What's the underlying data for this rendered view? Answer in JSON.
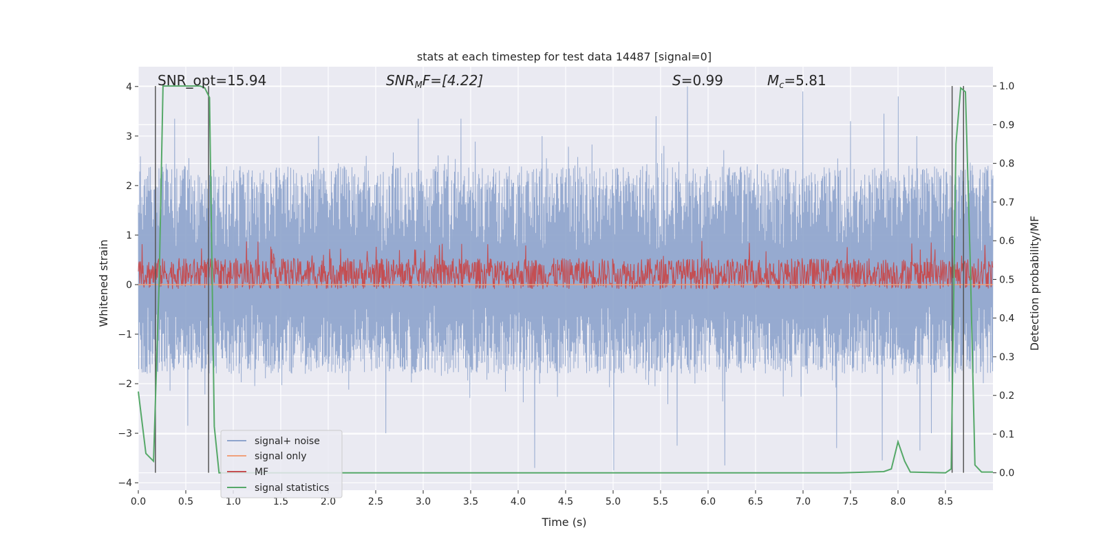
{
  "chart_data": {
    "type": "line",
    "title": "stats at each timestep for test data 14487 [signal=0]",
    "xlabel": "Time (s)",
    "ylabel": "Whitened strain",
    "y2label": "Detection probability/MF",
    "xlim": [
      0.0,
      9.0
    ],
    "ylim": [
      -4.15,
      4.4
    ],
    "y2lim": [
      -0.045,
      1.05
    ],
    "x_ticks": [
      "0.0",
      "0.5",
      "1.0",
      "1.5",
      "2.0",
      "2.5",
      "3.0",
      "3.5",
      "4.0",
      "4.5",
      "5.0",
      "5.5",
      "6.0",
      "6.5",
      "7.0",
      "7.5",
      "8.0",
      "8.5"
    ],
    "y_ticks": [
      "4",
      "3",
      "2",
      "1",
      "0",
      "−1",
      "−2",
      "−3",
      "−4"
    ],
    "y2_ticks": [
      "1.0",
      "0.9",
      "0.8",
      "0.7",
      "0.6",
      "0.5",
      "0.4",
      "0.3",
      "0.2",
      "0.1",
      "0.0"
    ],
    "grid": true,
    "annotations": {
      "snr_opt": "SNR_opt=15.94",
      "snr_mf_label": "SNR",
      "snr_mf_sub": "M",
      "snr_mf_rest": "F=[4.22]",
      "s_label": "S",
      "s_value": "=0.99",
      "mc_label": "M",
      "mc_sub": "c",
      "mc_value": "=5.81"
    },
    "legend": {
      "placement": "lower-left",
      "entries": [
        "signal+ noise",
        "signal only",
        "MF",
        "signal statistics"
      ]
    },
    "series": [
      {
        "name": "signal+ noise",
        "color": "#8da3cc",
        "axis": "left",
        "kind": "dense-noise",
        "typical_max": 2.4,
        "typical_min": -1.8,
        "peaks": [
          [
            0.18,
            3.3
          ],
          [
            0.38,
            3.35
          ],
          [
            2.95,
            3.35
          ],
          [
            3.4,
            3.35
          ],
          [
            5.45,
            3.4
          ],
          [
            5.78,
            4.0
          ],
          [
            7.0,
            3.9
          ],
          [
            7.5,
            3.3
          ],
          [
            7.85,
            3.45
          ],
          [
            8.0,
            3.8
          ],
          [
            4.25,
            3.0
          ],
          [
            1.9,
            3.0
          ],
          [
            8.2,
            3.0
          ]
        ],
        "troughs": [
          [
            5.0,
            -3.75
          ],
          [
            4.17,
            -3.7
          ],
          [
            6.17,
            -3.65
          ],
          [
            0.52,
            -2.85
          ],
          [
            5.67,
            -3.25
          ],
          [
            7.35,
            -3.3
          ],
          [
            7.83,
            -3.55
          ],
          [
            8.23,
            -3.35
          ],
          [
            2.6,
            -3.0
          ],
          [
            8.35,
            -3.0
          ]
        ]
      },
      {
        "name": "signal only",
        "color": "#f0a07a",
        "axis": "left",
        "x": [
          0.0,
          9.0
        ],
        "y": [
          0.0,
          0.0
        ]
      },
      {
        "name": "MF",
        "color": "#c44e52",
        "axis": "right",
        "kind": "dense-noise",
        "base": 0.515,
        "amplitude": 0.04,
        "max": 0.6
      },
      {
        "name": "signal statistics",
        "color": "#55a868",
        "axis": "right",
        "x": [
          0.0,
          0.08,
          0.16,
          0.22,
          0.26,
          0.65,
          0.7,
          0.75,
          0.8,
          0.85,
          0.9,
          1.0,
          5.0,
          7.4,
          7.85,
          7.93,
          8.0,
          8.07,
          8.13,
          8.5,
          8.56,
          8.61,
          8.66,
          8.71,
          8.76,
          8.81,
          8.88,
          9.0
        ],
        "y": [
          0.21,
          0.05,
          0.03,
          0.5,
          1.0,
          1.0,
          0.995,
          0.97,
          0.12,
          0.0,
          0.0,
          0.0,
          0.0,
          0.0,
          0.003,
          0.01,
          0.08,
          0.03,
          0.002,
          0.0,
          0.01,
          0.85,
          0.995,
          0.985,
          0.55,
          0.02,
          0.002,
          0.002
        ]
      }
    ],
    "vlines": [
      0.18,
      0.74,
      8.57,
      8.69
    ]
  }
}
